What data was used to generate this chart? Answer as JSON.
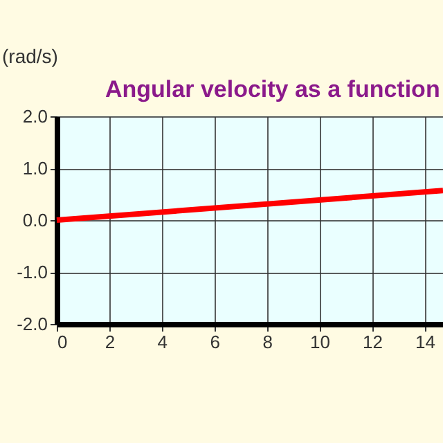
{
  "chart_data": {
    "type": "line",
    "title": "Angular velocity as a function",
    "ylabel": "(rad/s)",
    "x": [
      0,
      14.7
    ],
    "series": [
      {
        "color": "#ff0000",
        "values": [
          0,
          0.57
        ]
      }
    ],
    "xlim": [
      0,
      14.7
    ],
    "xticks": [
      0,
      2,
      4,
      6,
      8,
      10,
      12,
      14
    ],
    "ylim": [
      -2,
      2
    ],
    "yticks": [
      {
        "value": -2,
        "label": "-2.0"
      },
      {
        "value": -1,
        "label": "-1.0"
      },
      {
        "value": 0,
        "label": "0.0"
      },
      {
        "value": 1,
        "label": "1.0"
      },
      {
        "value": 2,
        "label": "2.0"
      }
    ],
    "grid": true,
    "marker": "none",
    "line_style": "solid"
  }
}
